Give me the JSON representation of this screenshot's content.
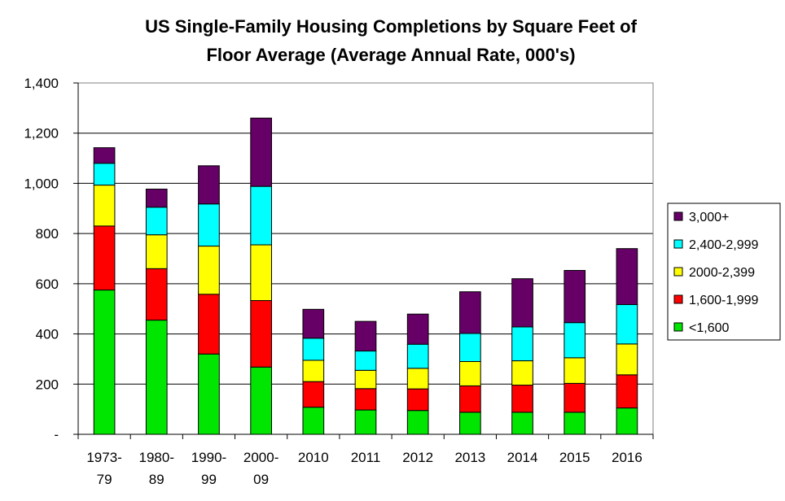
{
  "chart_data": {
    "type": "bar",
    "stacked": true,
    "title_lines": [
      "US Single-Family Housing Completions by Square Feet of",
      "Floor Average (Average Annual Rate, 000's)"
    ],
    "xlabel": "",
    "ylabel": "",
    "ylim": [
      0,
      1400
    ],
    "y_ticks": [
      0,
      200,
      400,
      600,
      800,
      1000,
      1200,
      1400
    ],
    "y_tick_labels": [
      "-",
      "200",
      "400",
      "600",
      "800",
      "1,000",
      "1,200",
      "1,400"
    ],
    "grid": true,
    "legend_position": "right",
    "categories": [
      [
        "1973-",
        "79"
      ],
      [
        "1980-",
        "89"
      ],
      [
        "1990-",
        "99"
      ],
      [
        "2000-",
        "09"
      ],
      [
        "2010"
      ],
      [
        "2011"
      ],
      [
        "2012"
      ],
      [
        "2013"
      ],
      [
        "2014"
      ],
      [
        "2015"
      ],
      [
        "2016"
      ]
    ],
    "series": [
      {
        "name": "<1,600",
        "color": "#00e600",
        "values": [
          575,
          455,
          320,
          268,
          108,
          97,
          95,
          88,
          88,
          88,
          105
        ]
      },
      {
        "name": "1,600-1,999",
        "color": "#ff0000",
        "values": [
          255,
          205,
          238,
          265,
          102,
          85,
          86,
          105,
          108,
          115,
          132
        ]
      },
      {
        "name": "2000-2,399",
        "color": "#ffff00",
        "values": [
          163,
          135,
          192,
          222,
          85,
          73,
          82,
          97,
          97,
          102,
          123
        ]
      },
      {
        "name": "2,400-2,999",
        "color": "#00ffff",
        "values": [
          87,
          110,
          168,
          233,
          88,
          77,
          96,
          112,
          135,
          140,
          157
        ]
      },
      {
        "name": "3,000+",
        "color": "#660066",
        "values": [
          62,
          72,
          152,
          272,
          115,
          118,
          120,
          166,
          192,
          208,
          223
        ]
      }
    ]
  }
}
